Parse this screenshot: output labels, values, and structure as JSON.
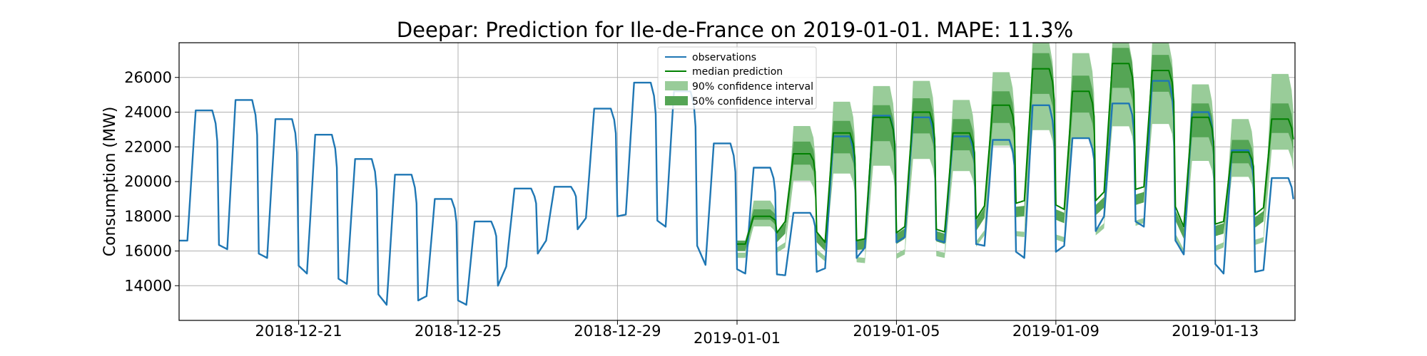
{
  "chart_data": {
    "type": "line",
    "title": "Deepar: Prediction for Ile-de-France on 2019-01-01. MAPE: 11.3%",
    "xlabel": "",
    "ylabel": "Consumption (MW)",
    "xlim": [
      "2018-12-18T00:00",
      "2019-01-15T00:00"
    ],
    "ylim": [
      12000,
      28000
    ],
    "x_ticks": [
      "2018-12-21",
      "2018-12-25",
      "2018-12-29",
      "2019-01-01",
      "2019-01-05",
      "2019-01-09",
      "2019-01-13"
    ],
    "y_ticks": [
      14000,
      16000,
      18000,
      20000,
      22000,
      24000,
      26000
    ],
    "grid": true,
    "legend_position": "top-center",
    "legend": [
      {
        "label": "observations",
        "kind": "line",
        "color": "#1f77b4"
      },
      {
        "label": "median prediction",
        "kind": "line",
        "color": "#008000"
      },
      {
        "label": "90% confidence interval",
        "kind": "band",
        "color": "#99cc99"
      },
      {
        "label": "50% confidence interval",
        "kind": "band",
        "color": "#55a555"
      }
    ],
    "observations_daily": [
      {
        "date": "2018-12-18",
        "min": 16600,
        "max": 24100
      },
      {
        "date": "2018-12-19",
        "min": 16100,
        "max": 24700
      },
      {
        "date": "2018-12-20",
        "min": 15600,
        "max": 23600
      },
      {
        "date": "2018-12-21",
        "min": 14700,
        "max": 22700
      },
      {
        "date": "2018-12-22",
        "min": 14100,
        "max": 21300
      },
      {
        "date": "2018-12-23",
        "min": 12900,
        "max": 20400
      },
      {
        "date": "2018-12-24",
        "min": 13400,
        "max": 19000
      },
      {
        "date": "2018-12-25",
        "min": 12900,
        "max": 17700
      },
      {
        "date": "2018-12-26",
        "min": 15100,
        "max": 19600
      },
      {
        "date": "2018-12-27",
        "min": 16600,
        "max": 19700
      },
      {
        "date": "2018-12-28",
        "min": 17900,
        "max": 24200
      },
      {
        "date": "2018-12-29",
        "min": 18100,
        "max": 25700
      },
      {
        "date": "2018-12-30",
        "min": 17400,
        "max": 25200
      },
      {
        "date": "2018-12-31",
        "min": 15200,
        "max": 22200
      },
      {
        "date": "2019-01-01",
        "min": 14700,
        "max": 20800
      },
      {
        "date": "2019-01-02",
        "min": 14600,
        "max": 18200
      },
      {
        "date": "2019-01-03",
        "min": 15000,
        "max": 22600
      },
      {
        "date": "2019-01-04",
        "min": 16200,
        "max": 23800
      },
      {
        "date": "2019-01-05",
        "min": 16800,
        "max": 23700
      },
      {
        "date": "2019-01-06",
        "min": 16500,
        "max": 22600
      },
      {
        "date": "2019-01-07",
        "min": 16300,
        "max": 22400
      },
      {
        "date": "2019-01-08",
        "min": 15600,
        "max": 24400
      },
      {
        "date": "2019-01-09",
        "min": 16300,
        "max": 22500
      },
      {
        "date": "2019-01-10",
        "min": 18000,
        "max": 24500
      },
      {
        "date": "2019-01-11",
        "min": 17400,
        "max": 25800
      },
      {
        "date": "2019-01-12",
        "min": 15800,
        "max": 24000
      },
      {
        "date": "2019-01-13",
        "min": 14700,
        "max": 21800
      },
      {
        "date": "2019-01-14",
        "min": 14900,
        "max": 20200
      }
    ],
    "prediction_daily": [
      {
        "date": "2019-01-01",
        "median_min": 16400,
        "median_max": 18000,
        "p50_low": 16000,
        "p50_high": 18400,
        "p90_low": 15600,
        "p90_high": 18900
      },
      {
        "date": "2019-01-02",
        "median_min": 17700,
        "median_max": 21600,
        "p50_low": 17000,
        "p50_high": 22300,
        "p90_low": 16200,
        "p90_high": 23200
      },
      {
        "date": "2019-01-03",
        "median_min": 16500,
        "median_max": 22800,
        "p50_low": 16000,
        "p50_high": 23500,
        "p90_low": 15400,
        "p90_high": 24600
      },
      {
        "date": "2019-01-04",
        "median_min": 16700,
        "median_max": 23700,
        "p50_low": 16100,
        "p50_high": 24400,
        "p90_low": 15300,
        "p90_high": 25500
      },
      {
        "date": "2019-01-05",
        "median_min": 17400,
        "median_max": 24000,
        "p50_low": 16700,
        "p50_high": 24800,
        "p90_low": 15800,
        "p90_high": 25800
      },
      {
        "date": "2019-01-06",
        "median_min": 17100,
        "median_max": 22800,
        "p50_low": 16400,
        "p50_high": 23600,
        "p90_low": 15600,
        "p90_high": 24700
      },
      {
        "date": "2019-01-07",
        "median_min": 18600,
        "median_max": 24400,
        "p50_low": 17900,
        "p50_high": 25200,
        "p90_low": 16900,
        "p90_high": 26300
      },
      {
        "date": "2019-01-08",
        "median_min": 18900,
        "median_max": 26500,
        "p50_low": 18000,
        "p50_high": 27400,
        "p90_low": 16800,
        "p90_high": 28000
      },
      {
        "date": "2019-01-09",
        "median_min": 18400,
        "median_max": 25200,
        "p50_low": 17600,
        "p50_high": 26100,
        "p90_low": 16500,
        "p90_high": 27400
      },
      {
        "date": "2019-01-10",
        "median_min": 19400,
        "median_max": 26800,
        "p50_low": 18500,
        "p50_high": 27700,
        "p90_low": 17300,
        "p90_high": 28000
      },
      {
        "date": "2019-01-11",
        "median_min": 19700,
        "median_max": 26400,
        "p50_low": 18800,
        "p50_high": 27300,
        "p90_low": 17600,
        "p90_high": 28000
      },
      {
        "date": "2019-01-12",
        "median_min": 17400,
        "median_max": 23700,
        "p50_low": 16700,
        "p50_high": 24500,
        "p90_low": 15800,
        "p90_high": 25600
      },
      {
        "date": "2019-01-13",
        "median_min": 17700,
        "median_max": 21700,
        "p50_low": 17000,
        "p50_high": 22400,
        "p90_low": 16200,
        "p90_high": 23600
      },
      {
        "date": "2019-01-14",
        "median_min": 18500,
        "median_max": 23600,
        "p50_low": 17700,
        "p50_high": 24500,
        "p90_low": 16500,
        "p90_high": 26200
      }
    ]
  }
}
